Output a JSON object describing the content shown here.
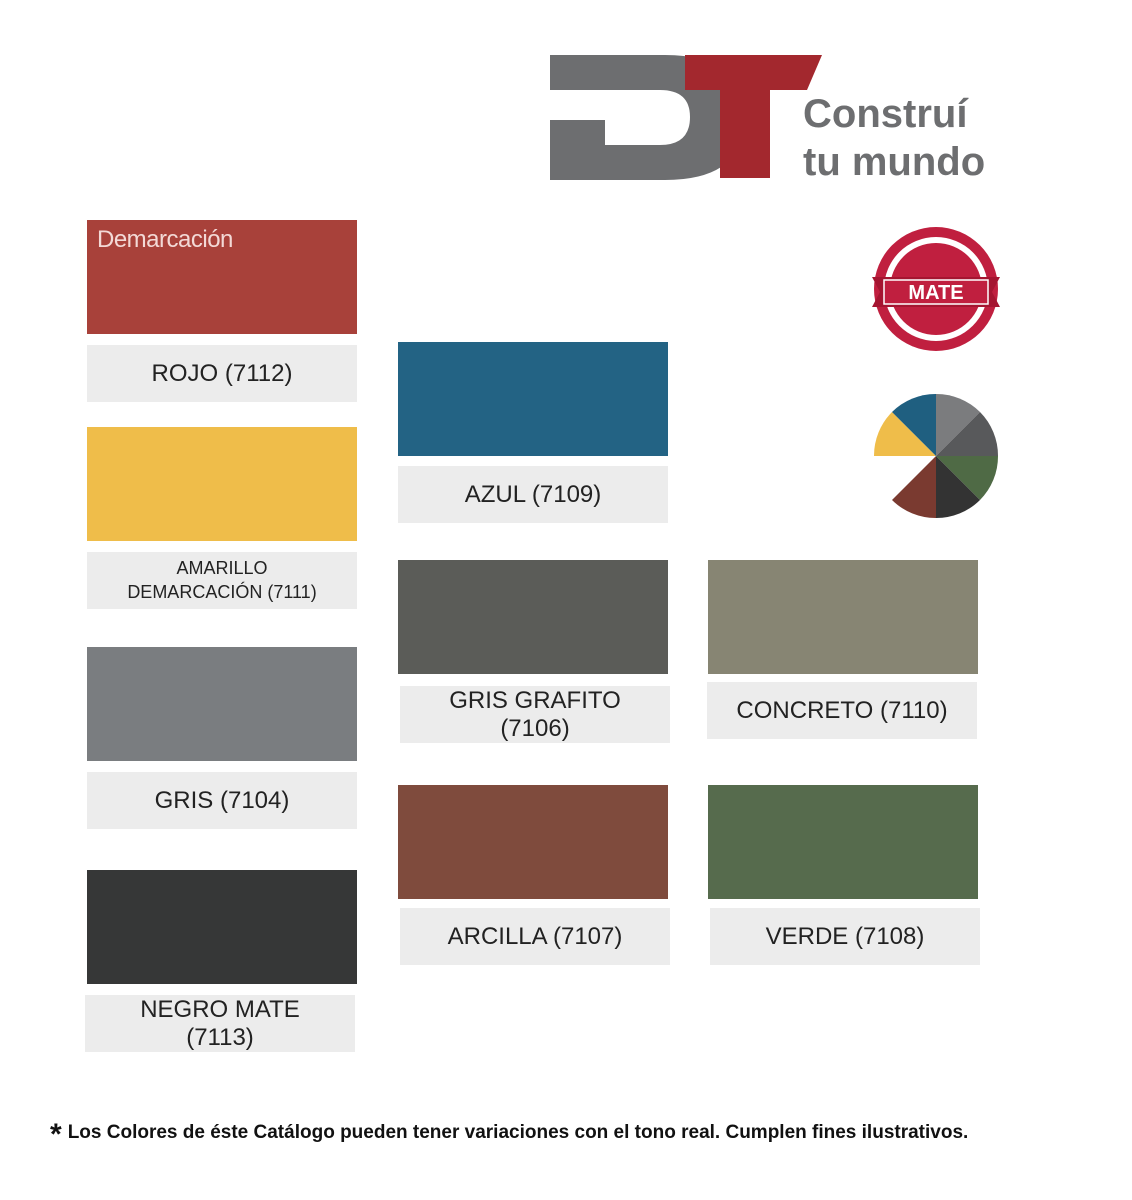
{
  "logo": {
    "tagline": [
      "Construí",
      "tu mundo"
    ]
  },
  "badge": "MATE",
  "swatches": [
    {
      "label": "ROJO (7112)",
      "color": "#a8413a",
      "tag": "Demarcación"
    },
    {
      "label": "AMARILLO DEMARCACIÓN (7111)",
      "color": "#efbd4a"
    },
    {
      "label": "GRIS (7104)",
      "color": "#7a7d80"
    },
    {
      "label": "NEGRO MATE (7113)",
      "color": "#363737"
    },
    {
      "label": "AZUL (7109)",
      "color": "#236384"
    },
    {
      "label": "GRIS GRAFITO (7106)",
      "color": "#5b5c58"
    },
    {
      "label": "CONCRETO (7110)",
      "color": "#878573"
    },
    {
      "label": "ARCILLA (7107)",
      "color": "#7f4b3d"
    },
    {
      "label": "VERDE (7108)",
      "color": "#566b4d"
    }
  ],
  "footnote": {
    "mark": "*",
    "text": "Los Colores de éste Catálogo pueden tener variaciones con el tono real. Cumplen fines ilustrativos."
  }
}
